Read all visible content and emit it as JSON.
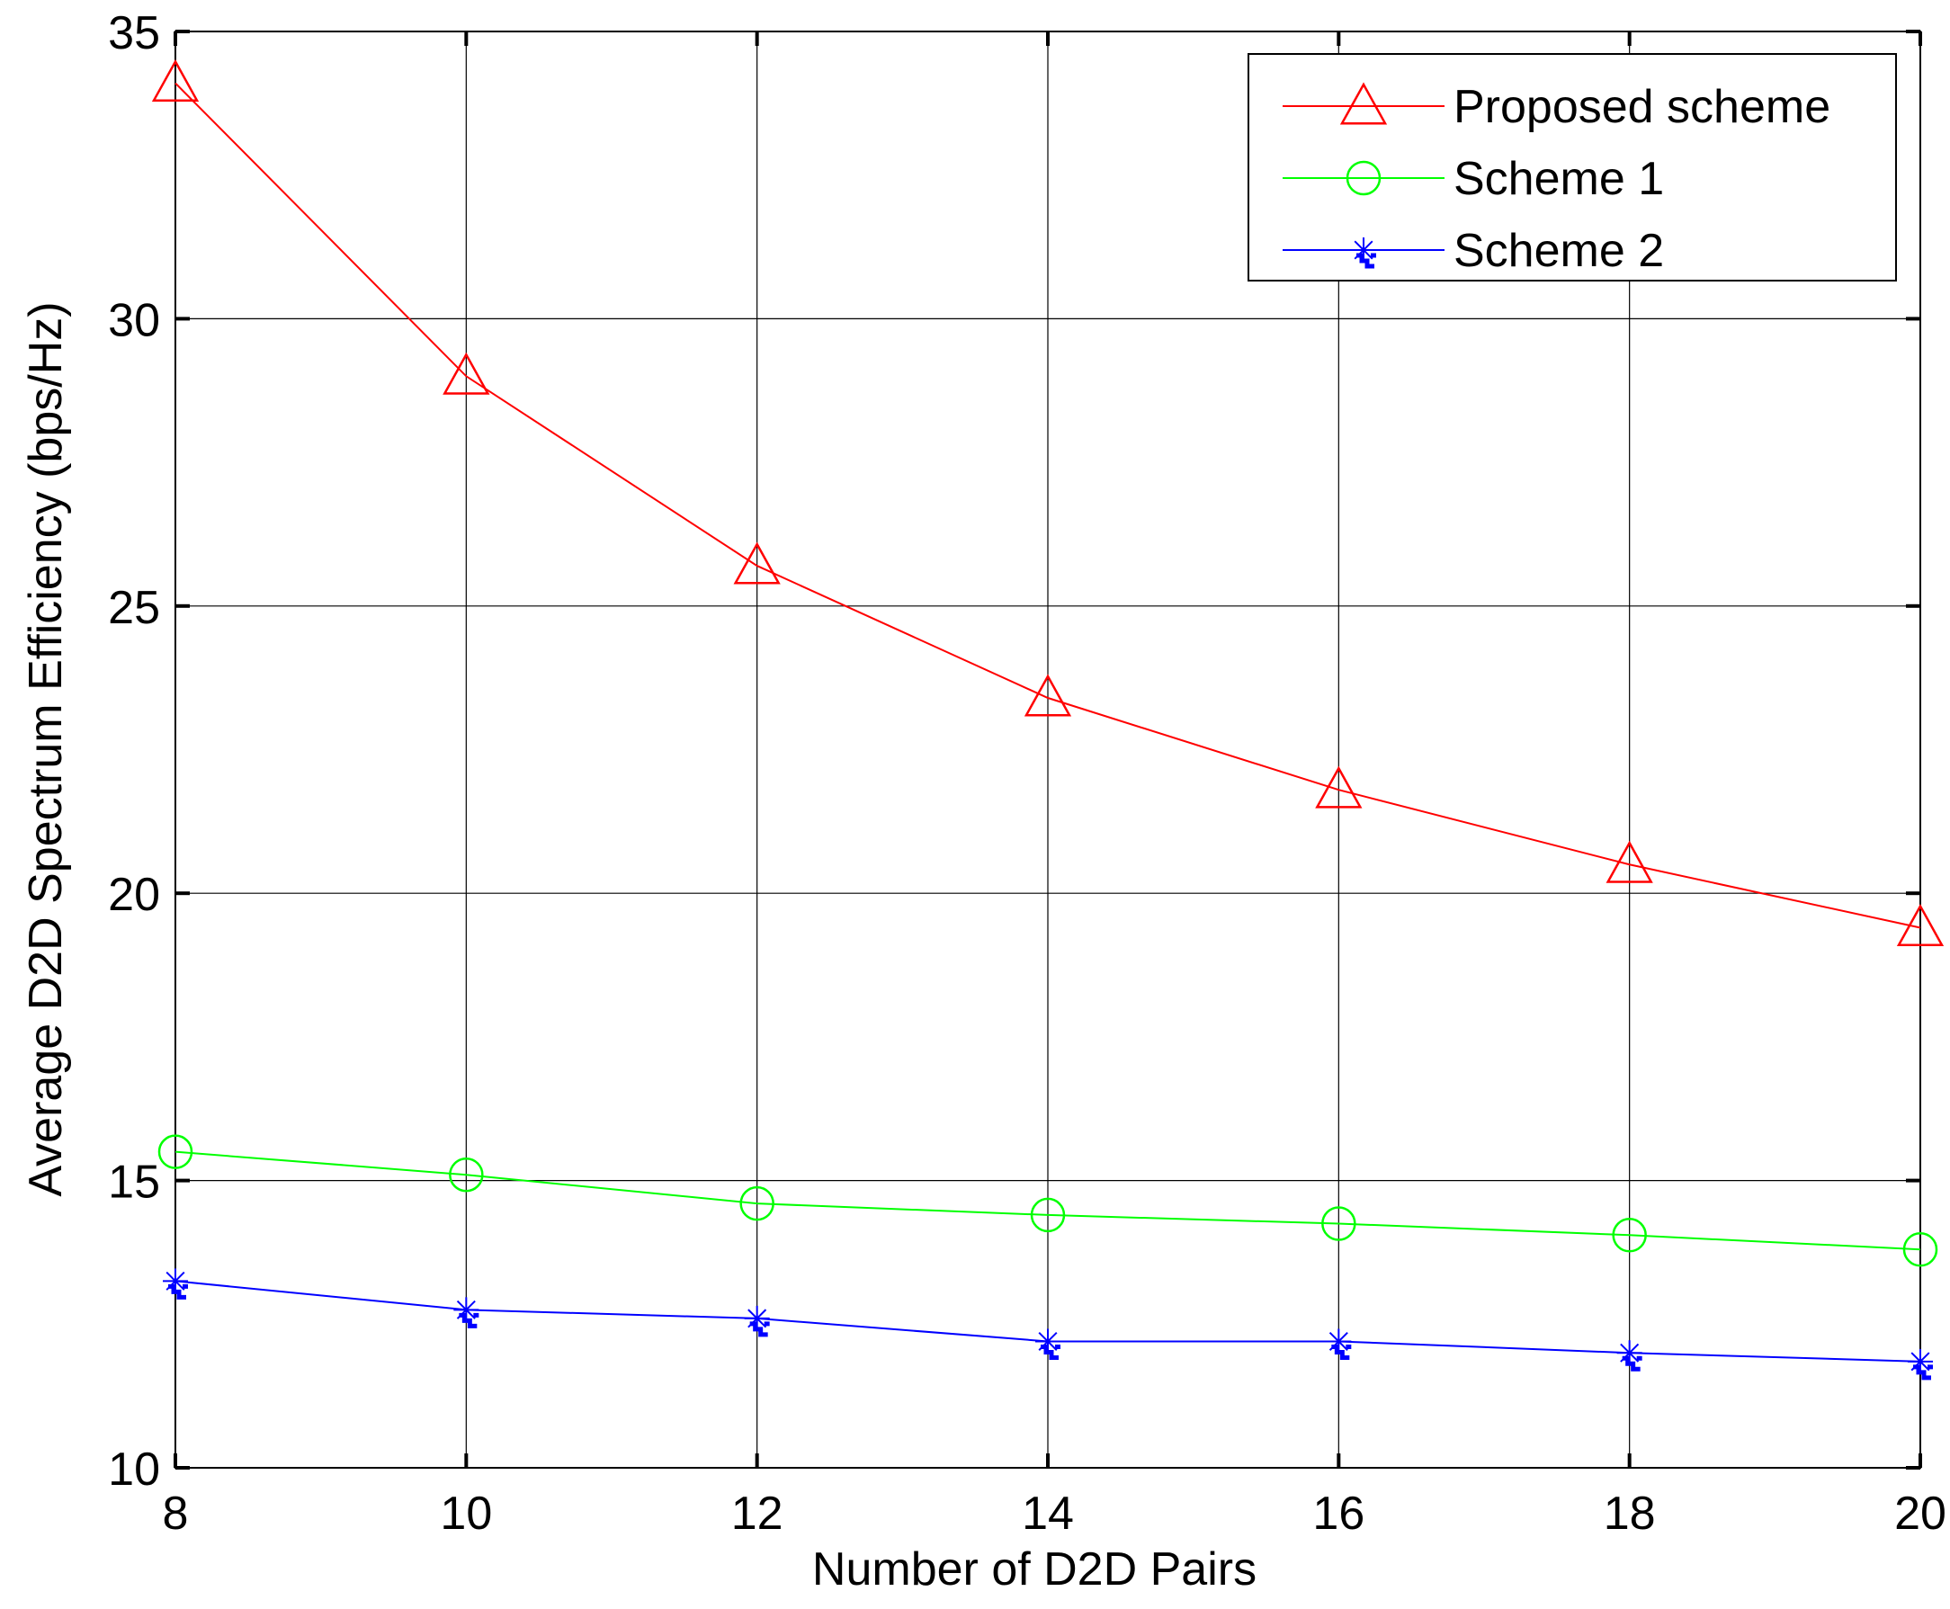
{
  "chart_data": {
    "type": "line",
    "title": "",
    "xlabel": "Number of D2D Pairs",
    "ylabel": "Average D2D Spectrum Efficiency (bps/Hz)",
    "xlim": [
      8,
      20
    ],
    "ylim": [
      10,
      35
    ],
    "xticks": [
      8,
      10,
      12,
      14,
      16,
      18,
      20
    ],
    "yticks": [
      10,
      15,
      20,
      25,
      30,
      35
    ],
    "grid": true,
    "legend_position": "top-right",
    "x": [
      8,
      10,
      12,
      14,
      16,
      18,
      20
    ],
    "series": [
      {
        "name": "Proposed scheme",
        "color": "#ff0000",
        "marker": "triangle",
        "values": [
          34.1,
          29.0,
          25.7,
          23.4,
          21.8,
          20.5,
          19.4
        ]
      },
      {
        "name": "Scheme 1",
        "color": "#00ff00",
        "marker": "circle",
        "values": [
          15.5,
          15.1,
          14.6,
          14.4,
          14.25,
          14.05,
          13.8
        ]
      },
      {
        "name": "Scheme 2",
        "color": "#0000ff",
        "marker": "star",
        "values": [
          13.25,
          12.75,
          12.6,
          12.2,
          12.2,
          12.0,
          11.85
        ]
      }
    ]
  }
}
